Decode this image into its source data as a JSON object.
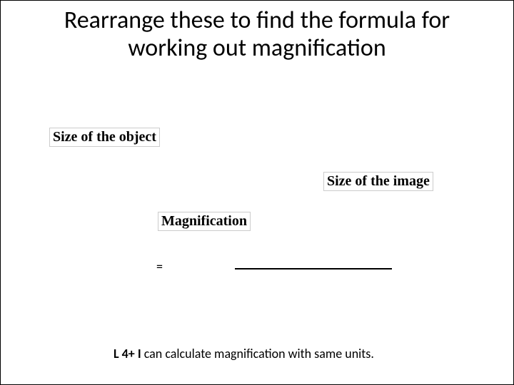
{
  "title": "Rearrange these to find the formula for working out magnification",
  "labels": {
    "sizeObject": "Size of the object",
    "sizeImage": "Size of the image",
    "magnification": "Magnification"
  },
  "equals": "=",
  "footer": {
    "prefix": "L 4+ I ",
    "rest": "can calculate magnification with same units."
  },
  "style": {
    "background": "#ffffff",
    "text_color": "#000000",
    "border_color": "#cccccc",
    "title_fontsize": 34,
    "label_fontsize": 20,
    "footer_fontsize": 18,
    "fraction_line_width": 220,
    "fraction_line_thickness": 2
  }
}
